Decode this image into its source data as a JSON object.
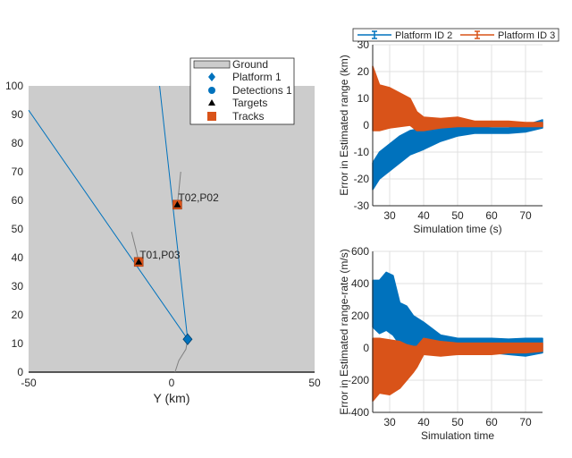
{
  "chart_data": [
    {
      "type": "scatter",
      "title": "",
      "xlabel": "Y (km)",
      "ylabel": "",
      "xlim": [
        -50,
        50
      ],
      "ylim": [
        0,
        100
      ],
      "xticks": [
        "-50",
        "0",
        "50"
      ],
      "yticks": [
        "0",
        "10",
        "20",
        "30",
        "40",
        "50",
        "60",
        "70",
        "80",
        "90",
        "100"
      ],
      "grid": false,
      "legend_position": "top-right",
      "legend": [
        "Ground",
        "Platform 1",
        "Detections 1",
        "Targets",
        "Tracks"
      ],
      "platform": {
        "y": 5.6,
        "x": 11.5
      },
      "detection_lines": [
        {
          "from": [
            5.6,
            11.5
          ],
          "to": [
            -50,
            91.5
          ]
        },
        {
          "from": [
            5.6,
            11.5
          ],
          "to": [
            -4.2,
            100
          ]
        }
      ],
      "targets": [
        {
          "y": -11.5,
          "x": 38.5
        },
        {
          "y": 2.0,
          "x": 58.5
        }
      ],
      "tracks": [
        {
          "y": -11.5,
          "x": 38.5,
          "label": "T01,P03"
        },
        {
          "y": 2.0,
          "x": 58.5,
          "label": "T02,P02"
        }
      ],
      "trails": [
        {
          "points": [
            [
              -14.0,
              49
            ],
            [
              -12.5,
              43
            ],
            [
              -11.5,
              38.5
            ]
          ]
        },
        {
          "points": [
            [
              3.2,
              70
            ],
            [
              2.5,
              63
            ],
            [
              2.0,
              58.5
            ]
          ]
        },
        {
          "points": [
            [
              1.2,
              0
            ],
            [
              2.5,
              4
            ],
            [
              5.0,
              8
            ],
            [
              5.6,
              11.5
            ]
          ]
        }
      ]
    },
    {
      "type": "line",
      "xlabel": "Simulation time (s)",
      "ylabel": "Error in Estimated range (km)",
      "xlim": [
        25,
        75
      ],
      "ylim": [
        -30,
        30
      ],
      "xticks": [
        "30",
        "40",
        "50",
        "60",
        "70"
      ],
      "yticks": [
        "-30",
        "-20",
        "-10",
        "0",
        "10",
        "20",
        "30"
      ],
      "grid": true,
      "legend_position": "top",
      "series": [
        {
          "name": "Platform ID 2",
          "color": "#0072BD",
          "t": [
            25,
            27,
            30,
            33,
            36,
            40,
            45,
            50,
            55,
            60,
            65,
            70,
            75
          ],
          "low": [
            -24,
            -20,
            -17,
            -14,
            -11,
            -9,
            -6,
            -4,
            -3,
            -3,
            -3,
            -2.5,
            -1
          ],
          "high": [
            -14,
            -10,
            -7,
            -4,
            -2,
            -1,
            0,
            0,
            -0.5,
            -1,
            -1,
            0,
            2
          ]
        },
        {
          "name": "Platform ID 3",
          "color": "#D95319",
          "t": [
            25,
            27,
            30,
            33,
            36,
            38,
            40,
            45,
            50,
            55,
            60,
            65,
            70,
            75
          ],
          "low": [
            -2,
            -2,
            -1,
            -0.5,
            0,
            -2,
            -2,
            -1,
            -0.5,
            -0.5,
            -0.5,
            -0.5,
            -0.5,
            -0.5
          ],
          "high": [
            22,
            15,
            14,
            12,
            10,
            5,
            3,
            2.5,
            3,
            1.5,
            1.5,
            1.5,
            1,
            1
          ]
        }
      ]
    },
    {
      "type": "line",
      "xlabel": "Simulation time",
      "ylabel": "Error in Estimated range-rate (m/s)",
      "xlim": [
        25,
        75
      ],
      "ylim": [
        -400,
        600
      ],
      "xticks": [
        "30",
        "40",
        "50",
        "60",
        "70"
      ],
      "yticks": [
        "-400",
        "-200",
        "0",
        "200",
        "400",
        "600"
      ],
      "grid": true,
      "series": [
        {
          "name": "Platform ID 2",
          "color": "#0072BD",
          "t": [
            25,
            27,
            29,
            31,
            33,
            35,
            37,
            40,
            45,
            50,
            55,
            60,
            65,
            70,
            75
          ],
          "low": [
            130,
            90,
            110,
            80,
            20,
            10,
            5,
            0,
            -10,
            -20,
            -20,
            -30,
            -40,
            -50,
            -30
          ],
          "high": [
            420,
            420,
            470,
            450,
            280,
            260,
            200,
            160,
            80,
            60,
            60,
            60,
            55,
            60,
            60
          ]
        },
        {
          "name": "Platform ID 3",
          "color": "#D95319",
          "t": [
            25,
            27,
            30,
            33,
            35,
            37,
            38,
            40,
            45,
            50,
            55,
            60,
            65,
            70,
            75
          ],
          "low": [
            -330,
            -280,
            -290,
            -250,
            -200,
            -150,
            -120,
            -40,
            -50,
            -40,
            -40,
            -40,
            -30,
            -30,
            -20
          ],
          "high": [
            60,
            60,
            50,
            40,
            20,
            10,
            10,
            60,
            40,
            30,
            30,
            30,
            30,
            30,
            30
          ]
        }
      ]
    }
  ]
}
